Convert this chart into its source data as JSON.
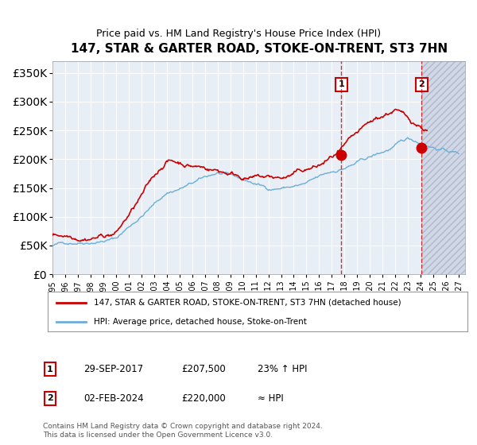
{
  "title": "147, STAR & GARTER ROAD, STOKE-ON-TRENT, ST3 7HN",
  "subtitle": "Price paid vs. HM Land Registry's House Price Index (HPI)",
  "ylabel_ticks": [
    "£0",
    "£50K",
    "£100K",
    "£150K",
    "£200K",
    "£250K",
    "£300K",
    "£350K"
  ],
  "ytick_values": [
    0,
    50000,
    100000,
    150000,
    200000,
    250000,
    300000,
    350000
  ],
  "ylim": [
    0,
    370000
  ],
  "xlim_start": 1995.0,
  "xlim_end": 2027.5,
  "point1_x": 2017.75,
  "point1_y": 207500,
  "point2_x": 2024.08,
  "point2_y": 220000,
  "point1_label": "1",
  "point2_label": "2",
  "legend_line1": "147, STAR & GARTER ROAD, STOKE-ON-TRENT, ST3 7HN (detached house)",
  "legend_line2": "HPI: Average price, detached house, Stoke-on-Trent",
  "table_row1": [
    "1",
    "29-SEP-2017",
    "£207,500",
    "23% ↑ HPI"
  ],
  "table_row2": [
    "2",
    "02-FEB-2024",
    "£220,000",
    "≈ HPI"
  ],
  "footnote": "Contains HM Land Registry data © Crown copyright and database right 2024.\nThis data is licensed under the Open Government Licence v3.0.",
  "hpi_color": "#6baed6",
  "price_color": "#cc0000",
  "hatch_color": "#d0d8e8",
  "future_shade_color": "#dce6f0",
  "bg_color": "#e8eef5",
  "grid_color": "#ffffff",
  "title_fontsize": 11,
  "subtitle_fontsize": 9
}
